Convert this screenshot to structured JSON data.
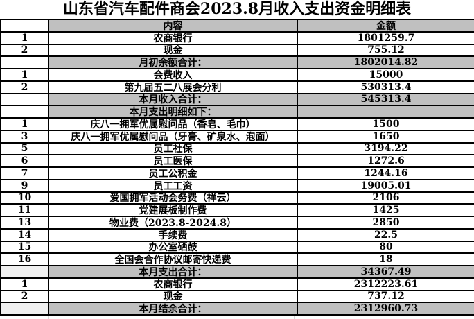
{
  "title": "山东省汽车配件商会2023.8月收入支出资金明细表",
  "columns": {
    "content": "内容",
    "amount": "金额"
  },
  "colors": {
    "header_fill": "#c0c0c0",
    "summary_fill": "#c0c0c0",
    "summary_index_fill": "#f0f0f0",
    "grid_border": "#000000",
    "text": "#000000"
  },
  "rows": [
    {
      "num": "1",
      "label": "农商银行",
      "amount": "1801259.7"
    },
    {
      "num": "2",
      "label": "现金",
      "amount": "755.12"
    },
    {
      "num": "",
      "label": "月初余额合计：",
      "amount": "1802014.82"
    },
    {
      "num": "1",
      "label": "会费收入",
      "amount": "15000"
    },
    {
      "num": "2",
      "label": "第九届五二八展会分利",
      "amount": "530313.4"
    },
    {
      "num": "",
      "label": "本月收入合计：",
      "amount": "545313.4"
    },
    {
      "num": "",
      "label": "本月支出明细如下：",
      "amount": ""
    },
    {
      "num": "1",
      "label": "庆八一拥军优属慰问品（香皂、毛巾）",
      "amount": "1500"
    },
    {
      "num": "3",
      "label": "庆八一拥军优属慰问品（牙膏、矿泉水、泡面）",
      "amount": "1650"
    },
    {
      "num": "5",
      "label": "员工社保",
      "amount": "3194.22"
    },
    {
      "num": "6",
      "label": "员工医保",
      "amount": "1272.6"
    },
    {
      "num": "7",
      "label": "员工公积金",
      "amount": "1244.16"
    },
    {
      "num": "9",
      "label": "员工工资",
      "amount": "19005.01"
    },
    {
      "num": "10",
      "label": "爱国拥军活动会务费（祥云）",
      "amount": "2106"
    },
    {
      "num": "11",
      "label": "党建展板制作费",
      "amount": "1425"
    },
    {
      "num": "13",
      "label": "物业费（2023.8-2024.8）",
      "amount": "2850"
    },
    {
      "num": "14",
      "label": "手续费",
      "amount": "22.5"
    },
    {
      "num": "15",
      "label": "办公室硒鼓",
      "amount": "80"
    },
    {
      "num": "16",
      "label": "全国会合作协议邮寄快递费",
      "amount": "18"
    },
    {
      "num": "",
      "label": "本月支出合计：",
      "amount": "34367.49"
    },
    {
      "num": "1",
      "label": "农商银行",
      "amount": "2312223.61"
    },
    {
      "num": "2",
      "label": "现金",
      "amount": "737.12"
    },
    {
      "num": "",
      "label": "本月结余合计：",
      "amount": "2312960.73"
    }
  ]
}
